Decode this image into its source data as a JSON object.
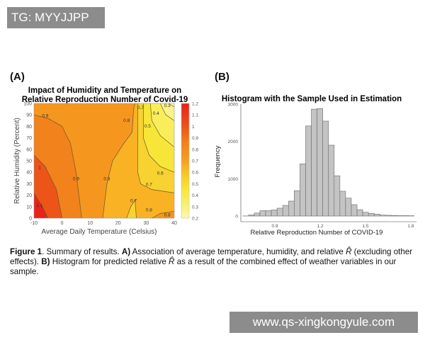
{
  "watermark_top": "TG: MYYJJPP",
  "watermark_bottom": "www.qs-xingkongyule.com",
  "panel_a": {
    "label": "(A)",
    "chart_data": {
      "type": "contour",
      "title_line1": "Impact of Humidity and Temperature on",
      "title_line2": "Relative Reproduction Number of Covid-19",
      "xlabel": "Average Daily Temperature (Celsius)",
      "ylabel": "Relative Humidity (Percent)",
      "xlim": [
        -10,
        40
      ],
      "ylim": [
        0,
        100
      ],
      "xticks": [
        "-10",
        "0",
        "10",
        "20",
        "30",
        "40"
      ],
      "yticks": [
        "0",
        "10",
        "20",
        "30",
        "40",
        "50",
        "60",
        "70",
        "80",
        "90",
        "100"
      ],
      "colorbar_ticks": [
        "1.2",
        "1.1",
        "1",
        "0.9",
        "0.8",
        "0.7",
        "0.6",
        "0.5",
        "0.4",
        "0.3",
        "0.2"
      ],
      "colorbar_range": [
        0.2,
        1.2
      ],
      "contour_labels": [
        "0.9",
        "1",
        "1.1",
        "0.9",
        "0.8",
        "0.8",
        "0.7",
        "0.5",
        "0.4",
        "0.3",
        "0.6",
        "0.7",
        "0.7",
        "0.8",
        "0.8"
      ]
    }
  },
  "panel_b": {
    "label": "(B)",
    "chart_data": {
      "type": "bar",
      "title": "Histogram with the Sample Used in Estimation",
      "xlabel": "Relative Reproduction Number of COVID-19",
      "ylabel": "Frequency",
      "xlim": [
        0.64,
        1.85
      ],
      "ylim": [
        0,
        3000
      ],
      "xticks": [
        "0.9",
        "1.2",
        "1.5",
        "1.8"
      ],
      "yticks": [
        "0",
        "1000",
        "2000",
        "3000"
      ],
      "bin_start": 0.688,
      "bin_width": 0.0378,
      "values": [
        3,
        30,
        80,
        145,
        145,
        165,
        210,
        285,
        400,
        680,
        1400,
        2415,
        2865,
        2880,
        2545,
        1900,
        1080,
        665,
        480,
        305,
        170,
        100,
        70,
        50,
        25,
        20,
        15,
        10,
        10,
        8
      ]
    }
  },
  "caption": {
    "fig": "Figure 1",
    "t1": ". Summary of results. ",
    "a": "A)",
    "t2": " Association of average temperature, humidity, and relative ",
    "rhat": "R̂",
    "t3": " (excluding other effects). ",
    "b": "B)",
    "t4": " Histogram for predicted relative ",
    "rhat2": "R̂",
    "t5": " as a result of the combined effect of weather variables in our sample."
  }
}
